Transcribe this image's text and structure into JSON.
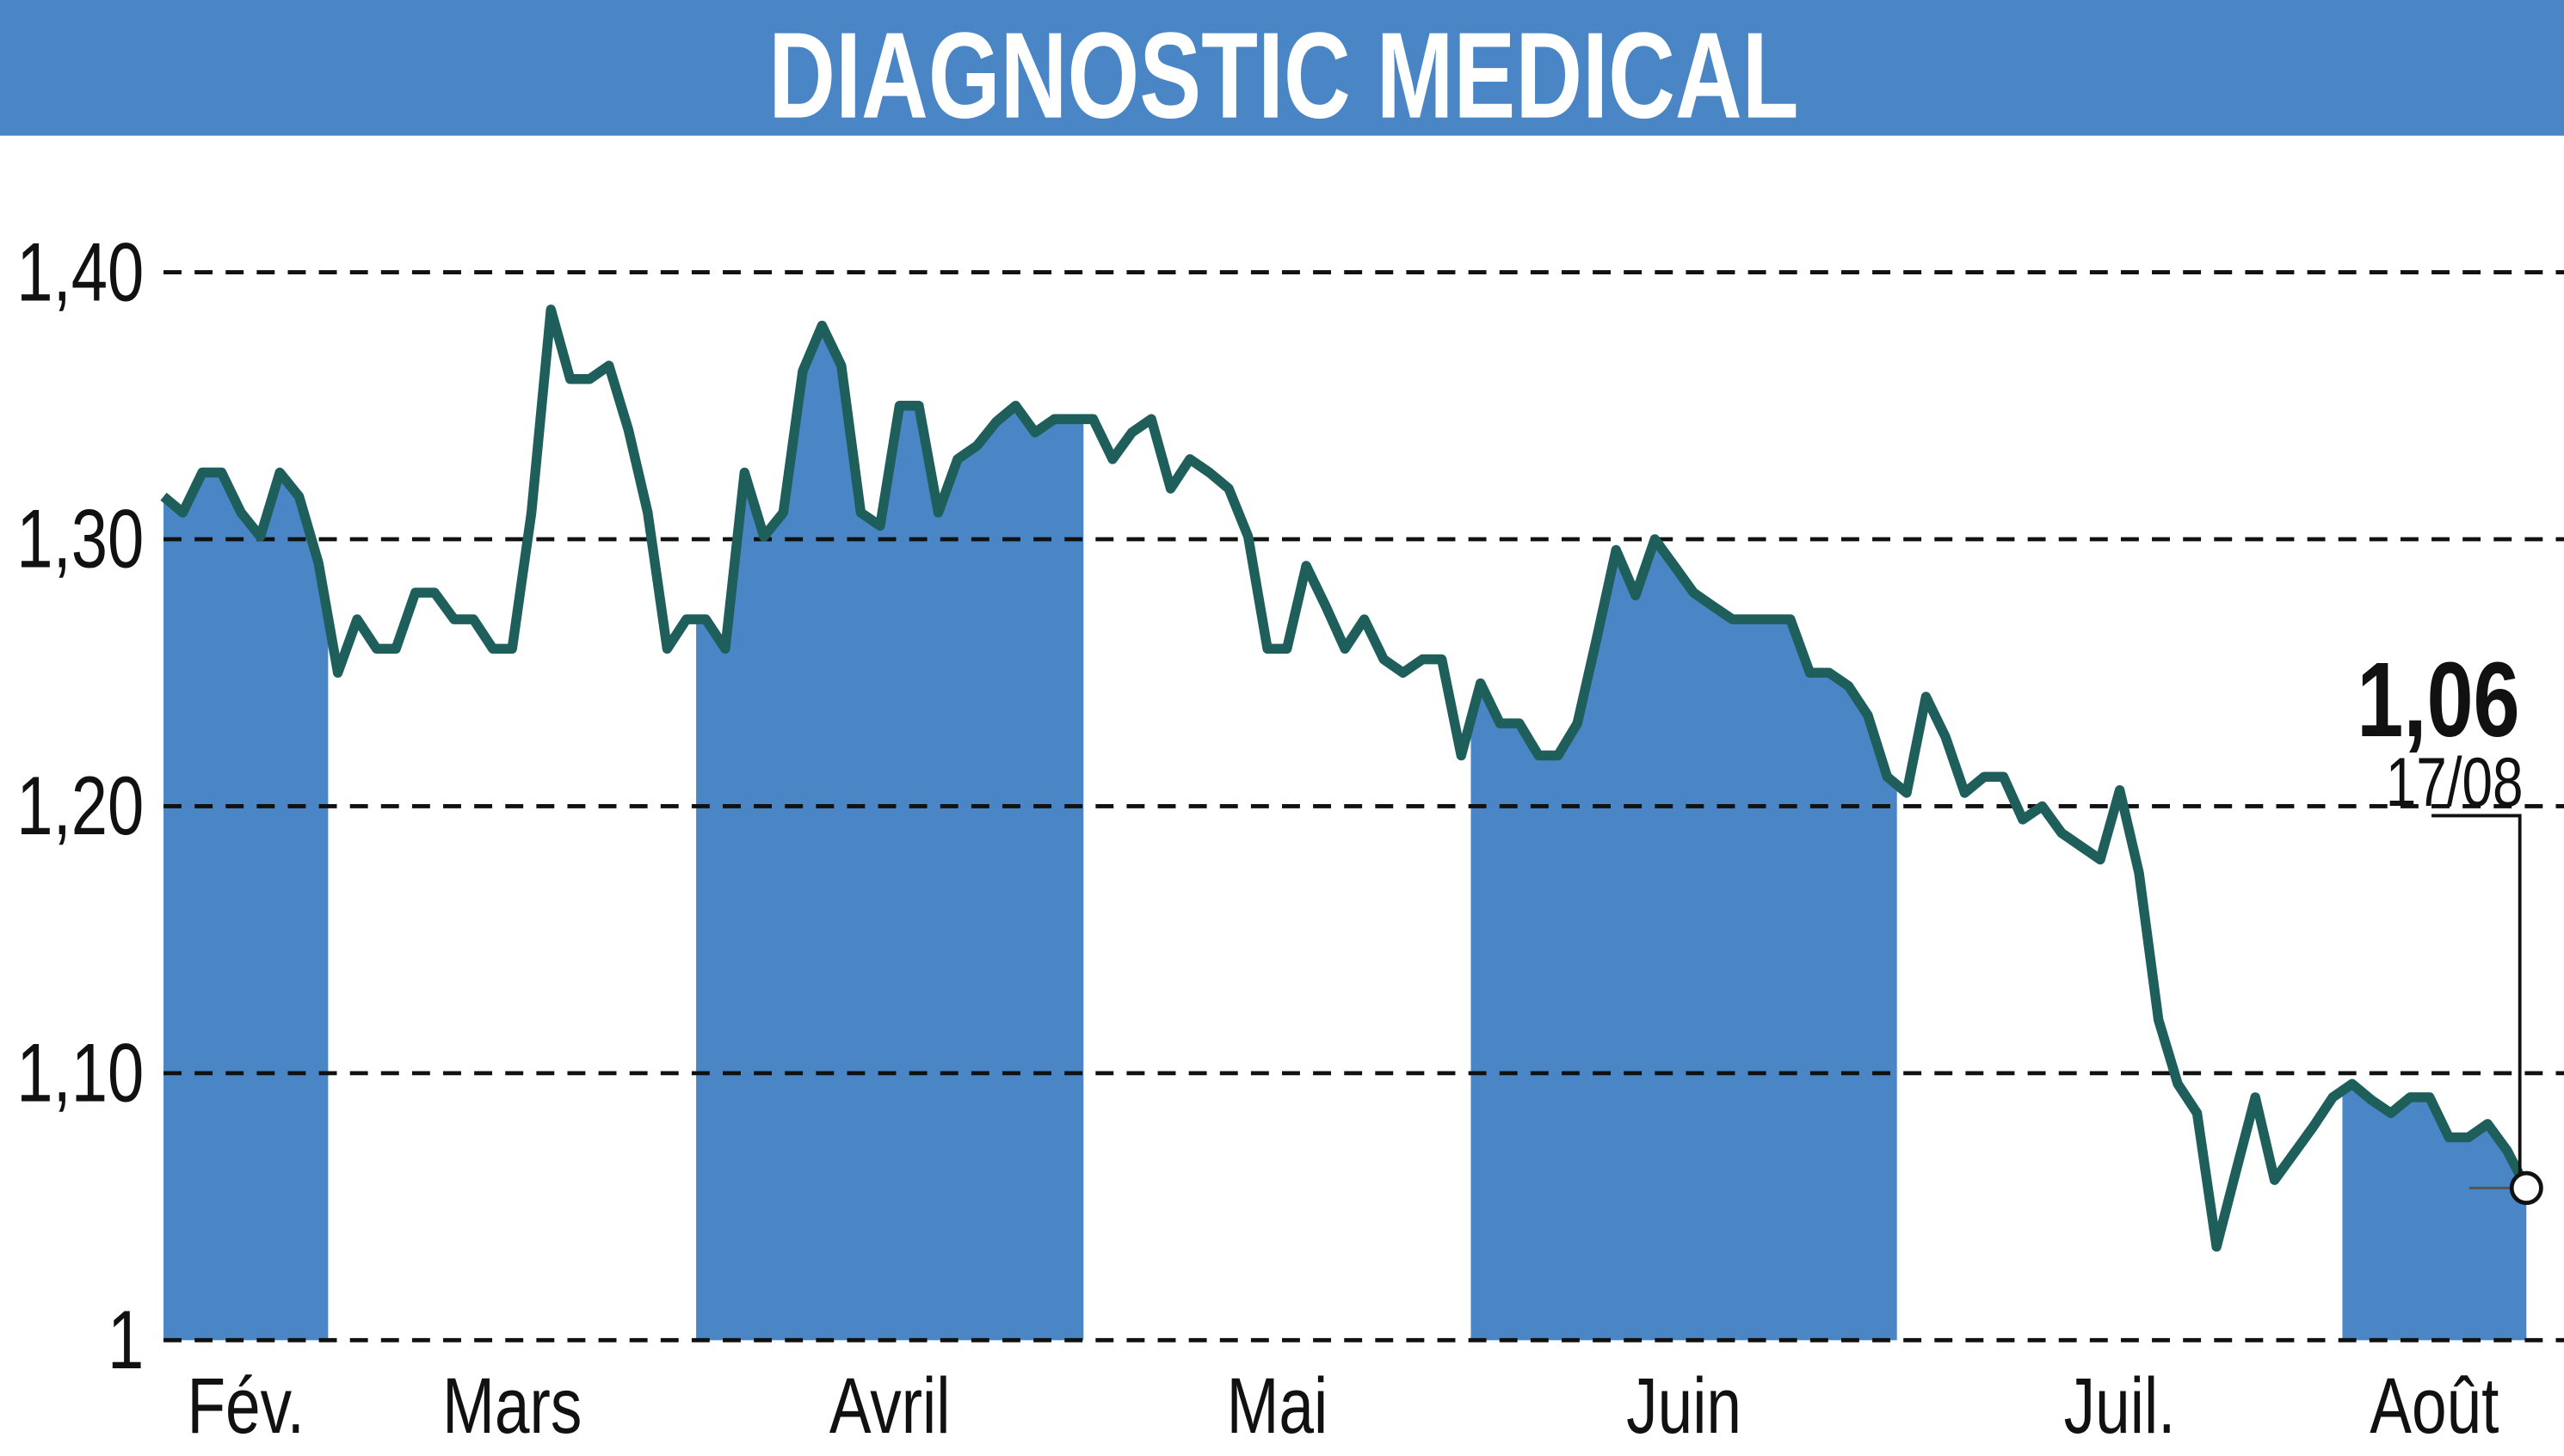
{
  "chart_data": {
    "type": "line",
    "title": "DIAGNOSTIC MEDICAL",
    "months": [
      {
        "name": "Fév.",
        "values": [
          1.316,
          1.31,
          1.325,
          1.325,
          1.31,
          1.301,
          1.325,
          1.316,
          1.291
        ]
      },
      {
        "name": "Mars",
        "values": [
          1.25,
          1.27,
          1.259,
          1.259,
          1.28,
          1.28,
          1.27,
          1.27,
          1.259,
          1.259,
          1.31,
          1.386,
          1.36,
          1.36,
          1.365,
          1.341,
          1.31,
          1.259,
          1.27
        ]
      },
      {
        "name": "Avril",
        "values": [
          1.27,
          1.259,
          1.325,
          1.301,
          1.31,
          1.363,
          1.38,
          1.365,
          1.31,
          1.305,
          1.35,
          1.35,
          1.31,
          1.33,
          1.335,
          1.344,
          1.35,
          1.34,
          1.345,
          1.345
        ]
      },
      {
        "name": "Mai",
        "values": [
          1.345,
          1.33,
          1.34,
          1.345,
          1.319,
          1.33,
          1.325,
          1.319,
          1.301,
          1.259,
          1.259,
          1.29,
          1.275,
          1.259,
          1.27,
          1.255,
          1.25,
          1.255,
          1.255,
          1.219
        ]
      },
      {
        "name": "Juin",
        "values": [
          1.246,
          1.231,
          1.231,
          1.219,
          1.219,
          1.231,
          1.263,
          1.296,
          1.279,
          1.3,
          1.29,
          1.28,
          1.275,
          1.27,
          1.27,
          1.27,
          1.27,
          1.25,
          1.25,
          1.245,
          1.234,
          1.211
        ]
      },
      {
        "name": "Juil.",
        "values": [
          1.205,
          1.241,
          1.226,
          1.205,
          1.211,
          1.211,
          1.195,
          1.2,
          1.19,
          1.185,
          1.18,
          1.206,
          1.175,
          1.12,
          1.096,
          1.085,
          1.035,
          1.063,
          1.091,
          1.06,
          1.07,
          1.08,
          1.091
        ]
      },
      {
        "name": "Août",
        "values": [
          1.096,
          1.09,
          1.085,
          1.091,
          1.091,
          1.076,
          1.076,
          1.081,
          1.071,
          1.057
        ]
      }
    ],
    "last_label": "1,06",
    "last_date": "17/08",
    "ylim": [
      1,
      1.44
    ],
    "yticks": [
      1,
      {
        "value": 1.1,
        "label": "1,10"
      },
      {
        "value": 1.2,
        "label": "1,20"
      },
      {
        "value": 1.3,
        "label": "1,30"
      },
      {
        "value": 1.4,
        "label": "1,40"
      }
    ],
    "grid": true,
    "line_color": "#1f5f5b",
    "fill_color": "#4a86c5",
    "title_color": "#4a86c5"
  }
}
